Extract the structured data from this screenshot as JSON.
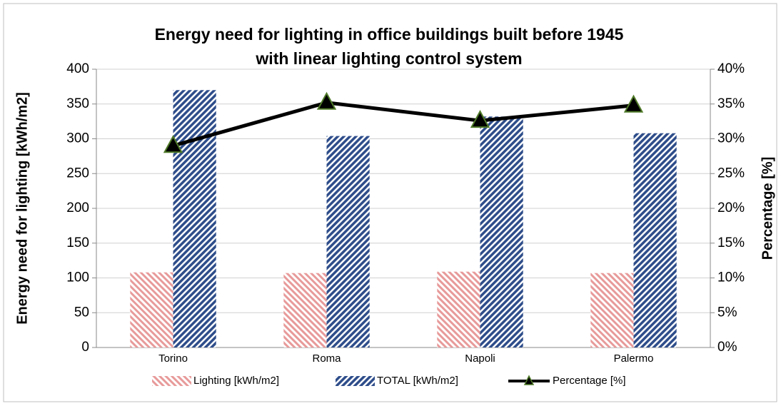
{
  "chart_data": {
    "type": "bar",
    "title": [
      "Energy need for lighting in office buildings built before 1945",
      "with linear lighting control system"
    ],
    "ylabel": "Energy need for lighting [kWh/m2]",
    "y2label": "Percentage [%]",
    "categories": [
      "Torino",
      "Roma",
      "Napoli",
      "Palermo"
    ],
    "series": [
      {
        "name": "Lighting [kWh/m2]",
        "type": "bar",
        "color": "#e89a9a",
        "values": [
          108,
          107,
          109,
          107
        ]
      },
      {
        "name": "TOTAL [kWh/m2]",
        "type": "bar",
        "color": "#2e4d8a",
        "values": [
          370,
          304,
          332,
          308
        ]
      },
      {
        "name": "Percentage [%]",
        "type": "line",
        "axis": "y2",
        "color": "#000000",
        "marker_color": "#4f7a28",
        "values": [
          29.0,
          35.2,
          32.6,
          34.8
        ]
      }
    ],
    "ylim": [
      0,
      400
    ],
    "yticks": [
      0,
      50,
      100,
      150,
      200,
      250,
      300,
      350,
      400
    ],
    "y2lim": [
      0,
      40
    ],
    "y2ticks": [
      {
        "value": 0,
        "label": "0%"
      },
      {
        "value": 5,
        "label": "5%"
      },
      {
        "value": 10,
        "label": "10%"
      },
      {
        "value": 15,
        "label": "15%"
      },
      {
        "value": 20,
        "label": "20%"
      },
      {
        "value": 25,
        "label": "25%"
      },
      {
        "value": 30,
        "label": "30%"
      },
      {
        "value": 35,
        "label": "35%"
      },
      {
        "value": 40,
        "label": "40%"
      }
    ],
    "grid": true,
    "legend": "bottom"
  }
}
